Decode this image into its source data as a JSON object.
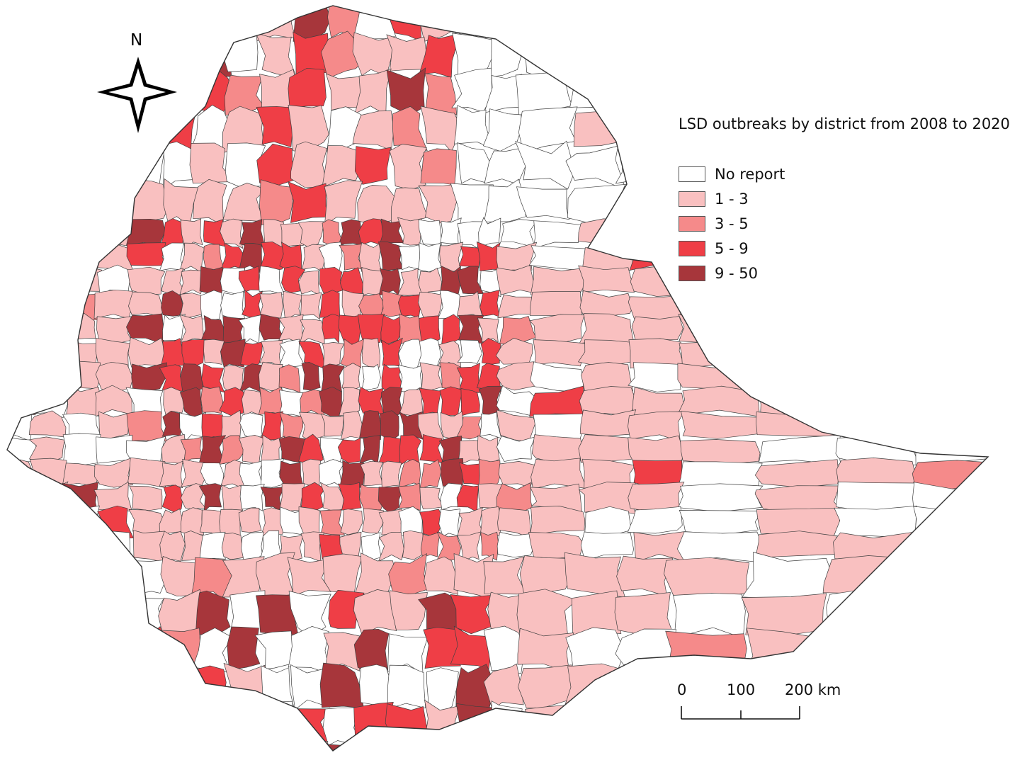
{
  "north_arrow": {
    "label": "N",
    "icon": "compass-rose-icon"
  },
  "legend": {
    "title": "LSD outbreaks by district from 2008 to 2020",
    "items": [
      {
        "label": "No report",
        "color": "#ffffff"
      },
      {
        "label": "1 - 3",
        "color": "#f9c0c0"
      },
      {
        "label": "3 - 5",
        "color": "#f58a8a"
      },
      {
        "label": "5 - 9",
        "color": "#ef3e46"
      },
      {
        "label": "9 - 50",
        "color": "#a7363b"
      }
    ]
  },
  "scale_bar": {
    "labels": [
      "0",
      "100",
      "200 km"
    ]
  },
  "colors": {
    "border": "#404040",
    "outline": "#333333"
  }
}
